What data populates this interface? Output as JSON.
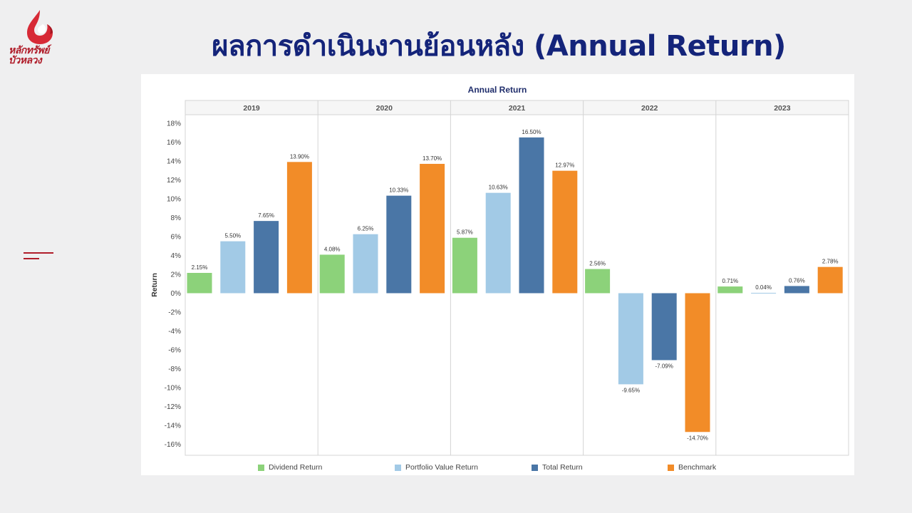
{
  "logo": {
    "line1": "หลักทรัพย์",
    "line2": "บัวหลวง"
  },
  "page": {
    "title": "ผลการดำเนินงานย้อนหลัง (Annual Return)"
  },
  "colors": {
    "title": "#14247a",
    "brand_red": "#b01d2a",
    "background": "#efeff0"
  },
  "chart_data": {
    "type": "bar",
    "title": "Annual Return",
    "ylabel": "Return",
    "xlabel": "",
    "ylim": [
      -17,
      19
    ],
    "yticks": [
      "18%",
      "16%",
      "14%",
      "12%",
      "10%",
      "8%",
      "6%",
      "4%",
      "2%",
      "0%",
      "-2%",
      "-4%",
      "-6%",
      "-8%",
      "-10%",
      "-12%",
      "-14%",
      "-16%"
    ],
    "ytick_values": [
      18,
      16,
      14,
      12,
      10,
      8,
      6,
      4,
      2,
      0,
      -2,
      -4,
      -6,
      -8,
      -10,
      -12,
      -14,
      -16
    ],
    "categories": [
      "2019",
      "2020",
      "2021",
      "2022",
      "2023"
    ],
    "grid": false,
    "legend_position": "bottom",
    "series": [
      {
        "name": "Dividend Return",
        "color": "#8cd27a",
        "values": [
          2.15,
          4.08,
          5.87,
          2.56,
          0.71
        ],
        "labels": [
          "2.15%",
          "4.08%",
          "5.87%",
          "2.56%",
          "0.71%"
        ]
      },
      {
        "name": "Portfolio Value Return",
        "color": "#a2cae6",
        "values": [
          5.5,
          6.25,
          10.63,
          -9.65,
          0.04
        ],
        "labels": [
          "5.50%",
          "6.25%",
          "10.63%",
          "-9.65%",
          "0.04%"
        ]
      },
      {
        "name": "Total Return",
        "color": "#4a76a6",
        "values": [
          7.65,
          10.33,
          16.5,
          -7.09,
          0.76
        ],
        "labels": [
          "7.65%",
          "10.33%",
          "16.50%",
          "-7.09%",
          "0.76%"
        ]
      },
      {
        "name": "Benchmark",
        "color": "#f28c28",
        "values": [
          13.9,
          13.7,
          12.97,
          -14.7,
          2.78
        ],
        "labels": [
          "13.90%",
          "13.70%",
          "12.97%",
          "-14.70%",
          "2.78%"
        ]
      }
    ]
  }
}
